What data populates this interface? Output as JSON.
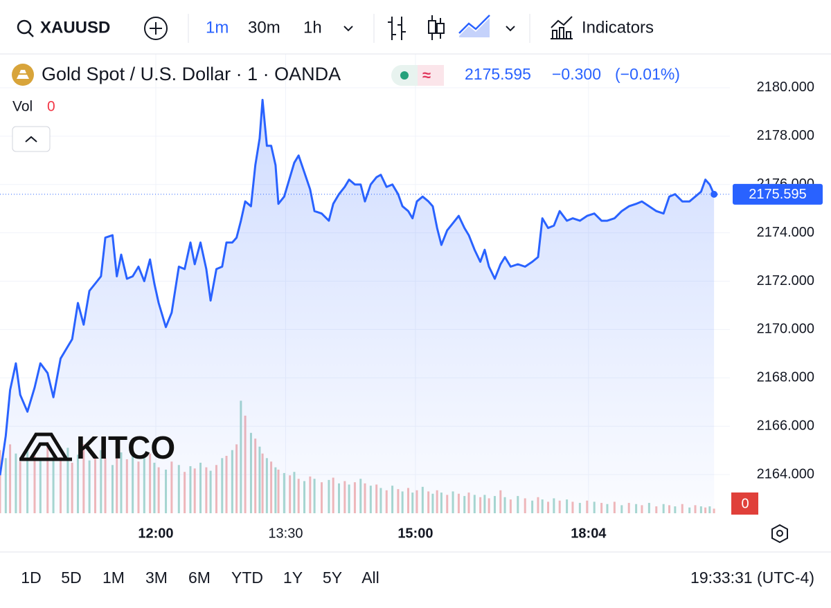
{
  "toolbar": {
    "symbol": "XAUUSD",
    "intervals": [
      "1m",
      "30m",
      "1h"
    ],
    "indicators": "Indicators"
  },
  "legend": {
    "title": "Gold Spot / U.S. Dollar · 1 · OANDA",
    "change": "−0.300",
    "change_pct": "(−0.01%)",
    "vol_label": "Vol",
    "vol_value": "0"
  },
  "watermark": "KITCO",
  "volume_badge": "0",
  "ranges": [
    "1D",
    "5D",
    "1M",
    "3M",
    "6M",
    "YTD",
    "1Y",
    "5Y",
    "All"
  ],
  "clock": "19:33:31 (UTC-4)",
  "chart_data": {
    "type": "line",
    "x": [
      0,
      4,
      7,
      11,
      14,
      19,
      24,
      28,
      33,
      37,
      42,
      47,
      50,
      54,
      58,
      62,
      66,
      70,
      73,
      78,
      81,
      84,
      88,
      92,
      96,
      100,
      104,
      107,
      110,
      115,
      119,
      124,
      128,
      132,
      135,
      139,
      143,
      146,
      150,
      154,
      157,
      161,
      164,
      167,
      170,
      174,
      177,
      180,
      182,
      185,
      188,
      191,
      193,
      197,
      201,
      204,
      207,
      211,
      215,
      218,
      223,
      228,
      231,
      235,
      239,
      242,
      246,
      250,
      253,
      257,
      261,
      264,
      268,
      272,
      276,
      279,
      283,
      286,
      289,
      293,
      297,
      300,
      303,
      306,
      310,
      314,
      318,
      322,
      325,
      329,
      333,
      336,
      339,
      343,
      347,
      350,
      354,
      359,
      364,
      369,
      373,
      376,
      380,
      384,
      388,
      393,
      397,
      402,
      407,
      412,
      417,
      421,
      426,
      431,
      436,
      441,
      445,
      450,
      455,
      460,
      464,
      468,
      473,
      478,
      482,
      486,
      489,
      492,
      495
    ],
    "series": [
      {
        "color": "#2962ff",
        "values": [
          2163.97,
          2165.6,
          2167.5,
          2168.6,
          2167.3,
          2166.6,
          2167.6,
          2168.6,
          2168.2,
          2167.2,
          2168.8,
          2169.3,
          2169.6,
          2171.1,
          2170.2,
          2171.6,
          2171.9,
          2172.2,
          2173.8,
          2173.9,
          2172.2,
          2173.1,
          2172.1,
          2172.2,
          2172.6,
          2172.0,
          2172.9,
          2171.9,
          2171.1,
          2170.1,
          2170.7,
          2172.6,
          2172.5,
          2173.6,
          2172.7,
          2173.6,
          2172.5,
          2171.2,
          2172.5,
          2172.6,
          2173.6,
          2173.6,
          2173.8,
          2174.5,
          2175.3,
          2175.1,
          2176.8,
          2177.9,
          2179.5,
          2177.6,
          2177.6,
          2176.8,
          2175.2,
          2175.5,
          2176.3,
          2176.9,
          2177.2,
          2176.5,
          2175.8,
          2174.9,
          2174.8,
          2174.5,
          2175.2,
          2175.6,
          2175.9,
          2176.2,
          2176.0,
          2176.0,
          2175.3,
          2176.0,
          2176.3,
          2176.4,
          2175.9,
          2176.0,
          2175.6,
          2175.1,
          2174.9,
          2174.6,
          2175.3,
          2175.5,
          2175.3,
          2175.1,
          2174.2,
          2173.5,
          2174.1,
          2174.4,
          2174.7,
          2174.2,
          2173.9,
          2173.3,
          2172.8,
          2173.3,
          2172.6,
          2172.1,
          2172.7,
          2173.0,
          2172.6,
          2172.7,
          2172.6,
          2172.8,
          2173.0,
          2174.6,
          2174.2,
          2174.3,
          2174.9,
          2174.5,
          2174.6,
          2174.5,
          2174.7,
          2174.8,
          2174.5,
          2174.5,
          2174.6,
          2174.9,
          2175.1,
          2175.2,
          2175.3,
          2175.1,
          2174.9,
          2174.8,
          2175.5,
          2175.6,
          2175.3,
          2175.3,
          2175.5,
          2175.7,
          2176.2,
          2176.0,
          2175.595
        ]
      }
    ],
    "volume": {
      "colors": [
        "#f3b8b8",
        "#a8d8cf"
      ],
      "lim": [
        0,
        400
      ],
      "values": [
        55,
        48,
        60,
        52,
        45,
        58,
        50,
        47,
        62,
        53,
        49,
        57,
        44,
        51,
        60,
        46,
        50,
        55,
        48,
        42,
        58,
        53,
        47,
        50,
        45,
        49,
        52,
        44,
        40,
        38,
        45,
        42,
        36,
        41,
        39,
        44,
        40,
        37,
        42,
        48,
        50,
        55,
        60,
        98,
        85,
        70,
        65,
        58,
        52,
        48,
        45,
        40,
        38,
        35,
        33,
        36,
        30,
        28,
        32,
        30,
        27,
        29,
        31,
        26,
        28,
        25,
        27,
        30,
        26,
        24,
        25,
        22,
        20,
        24,
        21,
        19,
        22,
        18,
        20,
        23,
        19,
        17,
        20,
        18,
        16,
        19,
        17,
        15,
        18,
        16,
        14,
        16,
        13,
        15,
        20,
        14,
        12,
        15,
        13,
        11,
        14,
        12,
        10,
        13,
        11,
        12,
        10,
        9,
        11,
        10,
        9,
        8,
        10,
        7,
        9,
        8,
        7,
        9,
        6,
        8,
        7,
        6,
        8,
        5,
        7,
        6,
        5,
        6,
        4
      ]
    },
    "xlim": [
      0,
      506
    ],
    "xticks": [
      {
        "value": 108,
        "label": "12:00"
      },
      {
        "value": 198,
        "label": "13:30"
      },
      {
        "value": 288,
        "label": "15:00"
      },
      {
        "value": 408,
        "label": "18:04"
      }
    ],
    "ylim": [
      2162.4,
      2181.4
    ],
    "yticks": [
      {
        "value": 2164,
        "label": "2164.000"
      },
      {
        "value": 2166,
        "label": "2166.000"
      },
      {
        "value": 2168,
        "label": "2168.000"
      },
      {
        "value": 2170,
        "label": "2170.000"
      },
      {
        "value": 2172,
        "label": "2172.000"
      },
      {
        "value": 2174,
        "label": "2174.000"
      },
      {
        "value": 2176,
        "label": "2176.000"
      },
      {
        "value": 2178,
        "label": "2178.000"
      },
      {
        "value": 2180,
        "label": "2180.000"
      }
    ],
    "grid": true
  }
}
